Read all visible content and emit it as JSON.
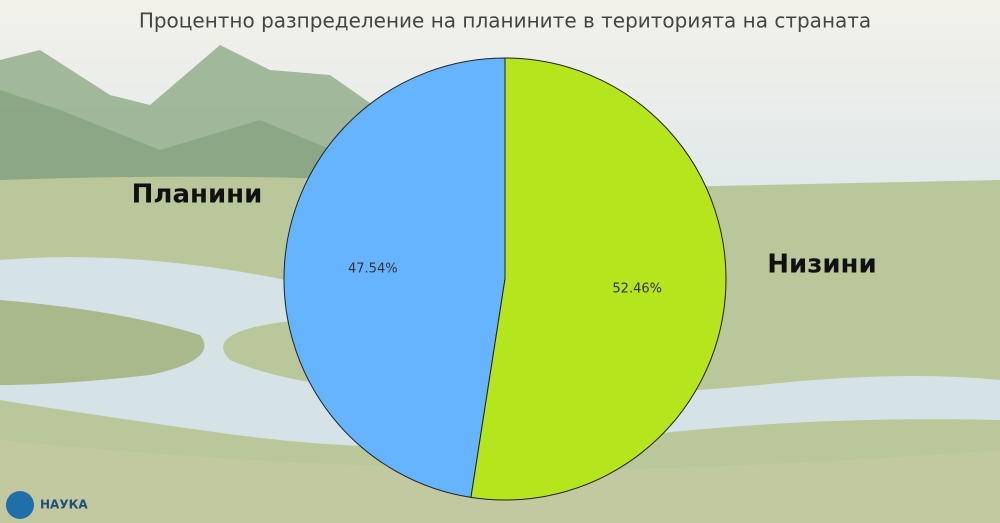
{
  "chart_data": {
    "type": "pie",
    "title": "Процентно разпределение на планините в територията на страната",
    "categories": [
      "Планини",
      "Низини"
    ],
    "values": [
      47.54,
      52.46
    ],
    "value_labels": [
      "47.54%",
      "52.46%"
    ],
    "colors": [
      "#66b3ff",
      "#b5e51d"
    ]
  },
  "logo_text": "НАУКА"
}
